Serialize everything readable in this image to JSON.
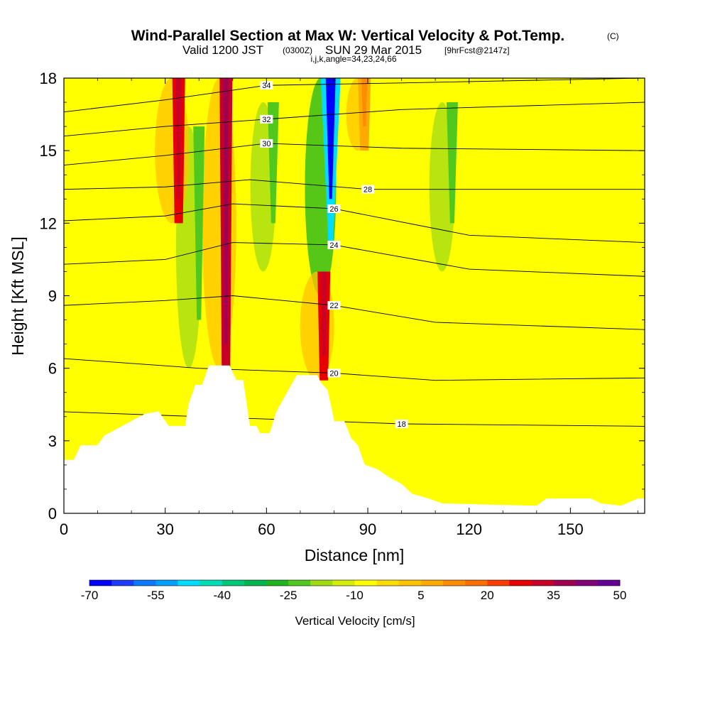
{
  "chart_data": {
    "type": "heatmap",
    "title": "Wind-Parallel Section at Max W: Vertical Velocity & Pot.Temp.",
    "title_mark": "(C)",
    "subtitle_valid": "Valid 1200 JST",
    "subtitle_utc": "(0300Z)",
    "subtitle_date": "SUN 29 Mar 2015",
    "subtitle_fcst": "[9hrFcst@2147z]",
    "subtitle_grid": "i,j,k,angle=34,23,24,66",
    "xlabel": "Distance [nm]",
    "ylabel": "Height [Kft MSL]",
    "xlim": [
      0,
      172
    ],
    "ylim": [
      0,
      18
    ],
    "xticks": [
      0,
      30,
      60,
      90,
      120,
      150
    ],
    "yticks": [
      0,
      3,
      6,
      9,
      12,
      15,
      18
    ],
    "colorbar": {
      "label": "Vertical Velocity [cm/s]",
      "tick_labels": [
        "-70",
        "-55",
        "-40",
        "-25",
        "-10",
        "5",
        "20",
        "35",
        "50"
      ],
      "colors": [
        "#0000ff",
        "#1e3cff",
        "#0a78ff",
        "#00a0ff",
        "#00dcff",
        "#00dcb4",
        "#00c878",
        "#00b450",
        "#1eb41e",
        "#50c81e",
        "#a0dc14",
        "#d2ee0a",
        "#ffff00",
        "#ffdc00",
        "#ffc300",
        "#ffaa00",
        "#ff8c00",
        "#ff6e00",
        "#ff3c00",
        "#e60000",
        "#c80028",
        "#a00050",
        "#820078",
        "#640096"
      ]
    },
    "terrain": [
      [
        0,
        2.2
      ],
      [
        3,
        2.2
      ],
      [
        5,
        2.8
      ],
      [
        10,
        2.8
      ],
      [
        12,
        3.2
      ],
      [
        16,
        3.5
      ],
      [
        20,
        3.8
      ],
      [
        24,
        4.1
      ],
      [
        28,
        4.2
      ],
      [
        31,
        3.6
      ],
      [
        33,
        3.6
      ],
      [
        36,
        3.6
      ],
      [
        37,
        4.5
      ],
      [
        39,
        5.3
      ],
      [
        41,
        5.3
      ],
      [
        43,
        6.1
      ],
      [
        49,
        6.1
      ],
      [
        51,
        5.5
      ],
      [
        53,
        5.5
      ],
      [
        55,
        3.6
      ],
      [
        57,
        3.6
      ],
      [
        58,
        3.3
      ],
      [
        61,
        3.3
      ],
      [
        63,
        4.2
      ],
      [
        65,
        4.7
      ],
      [
        67,
        5.2
      ],
      [
        69,
        5.7
      ],
      [
        75,
        5.7
      ],
      [
        76,
        5.4
      ],
      [
        78,
        5.1
      ],
      [
        80,
        3.8
      ],
      [
        83,
        3.8
      ],
      [
        85,
        3.1
      ],
      [
        87,
        2.8
      ],
      [
        89,
        2.0
      ],
      [
        93,
        1.8
      ],
      [
        96,
        1.5
      ],
      [
        100,
        1.2
      ],
      [
        103,
        0.8
      ],
      [
        108,
        0.6
      ],
      [
        112,
        0.4
      ],
      [
        125,
        0.35
      ],
      [
        140,
        0.3
      ],
      [
        143,
        0.6
      ],
      [
        156,
        0.6
      ],
      [
        159,
        0.4
      ],
      [
        165,
        0.3
      ],
      [
        170,
        0.6
      ],
      [
        172,
        0.6
      ]
    ],
    "updrafts": [
      {
        "x": 34,
        "zmin": 12,
        "zmax": 18,
        "w": 40
      },
      {
        "x": 48,
        "zmin": 6,
        "zmax": 18,
        "w": 55
      },
      {
        "x": 77,
        "zmin": 5.5,
        "zmax": 10,
        "w": 45
      },
      {
        "x": 89,
        "zmin": 15,
        "zmax": 18,
        "w": 10
      }
    ],
    "downdrafts": [
      {
        "x": 79,
        "zmin": 11,
        "zmax": 18,
        "w": -70
      },
      {
        "x": 40,
        "zmin": 8,
        "zmax": 16,
        "w": -28
      },
      {
        "x": 62,
        "zmin": 12,
        "zmax": 17,
        "w": -20
      },
      {
        "x": 115,
        "zmin": 12,
        "zmax": 17,
        "w": -15
      }
    ],
    "contours": [
      {
        "label": "18",
        "levels": [
          [
            0,
            4.2
          ],
          [
            60,
            3.9
          ],
          [
            100,
            3.7
          ],
          [
            172,
            3.6
          ]
        ]
      },
      {
        "label": "20",
        "levels": [
          [
            0,
            6.4
          ],
          [
            40,
            6.0
          ],
          [
            80,
            5.8
          ],
          [
            110,
            5.5
          ],
          [
            172,
            5.6
          ]
        ]
      },
      {
        "label": "22",
        "levels": [
          [
            0,
            8.6
          ],
          [
            30,
            8.8
          ],
          [
            50,
            9.0
          ],
          [
            80,
            8.6
          ],
          [
            110,
            7.9
          ],
          [
            172,
            7.6
          ]
        ]
      },
      {
        "label": "24",
        "levels": [
          [
            0,
            10.3
          ],
          [
            30,
            10.5
          ],
          [
            50,
            11.2
          ],
          [
            80,
            11.1
          ],
          [
            120,
            10.1
          ],
          [
            172,
            9.8
          ]
        ]
      },
      {
        "label": "26",
        "levels": [
          [
            0,
            12.1
          ],
          [
            30,
            12.3
          ],
          [
            50,
            12.8
          ],
          [
            80,
            12.6
          ],
          [
            120,
            11.5
          ],
          [
            172,
            11.2
          ]
        ]
      },
      {
        "label": "28",
        "levels": [
          [
            0,
            13.4
          ],
          [
            30,
            13.5
          ],
          [
            55,
            13.8
          ],
          [
            90,
            13.4
          ],
          [
            130,
            13.4
          ],
          [
            172,
            13.4
          ]
        ]
      },
      {
        "label": "30",
        "levels": [
          [
            0,
            14.4
          ],
          [
            30,
            14.8
          ],
          [
            60,
            15.3
          ],
          [
            100,
            15.1
          ],
          [
            172,
            15.0
          ]
        ]
      },
      {
        "label": "32",
        "levels": [
          [
            0,
            15.6
          ],
          [
            30,
            16.0
          ],
          [
            60,
            16.3
          ],
          [
            100,
            16.7
          ],
          [
            172,
            17.0
          ]
        ]
      },
      {
        "label": "34",
        "levels": [
          [
            0,
            16.6
          ],
          [
            30,
            17.1
          ],
          [
            60,
            17.7
          ],
          [
            100,
            17.8
          ],
          [
            172,
            18.0
          ]
        ]
      }
    ]
  }
}
